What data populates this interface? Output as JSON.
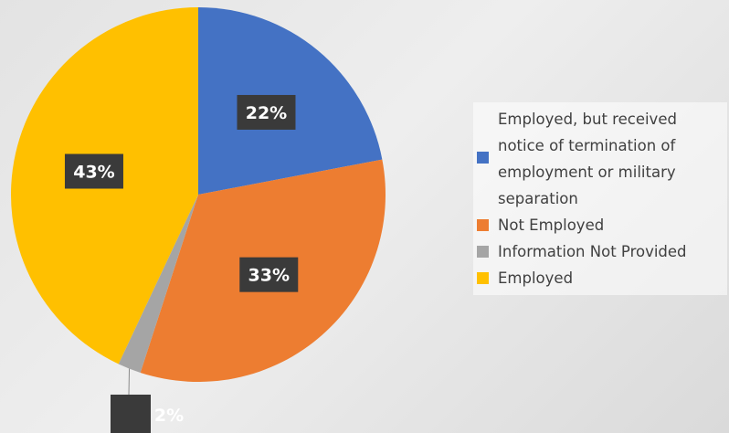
{
  "chart_data": {
    "type": "pie",
    "title": "",
    "slices": [
      {
        "label": "Employed, but received notice of termination of employment or military separation",
        "value": 22,
        "value_label": "22%",
        "color": "#4472C4"
      },
      {
        "label": "Not Employed",
        "value": 33,
        "value_label": "33%",
        "color": "#ED7D31"
      },
      {
        "label": "Information Not Provided",
        "value": 2,
        "value_label": "2%",
        "color": "#A5A5A5"
      },
      {
        "label": "Employed",
        "value": 43,
        "value_label": "43%",
        "color": "#FFC000"
      }
    ],
    "legend_position": "right"
  }
}
